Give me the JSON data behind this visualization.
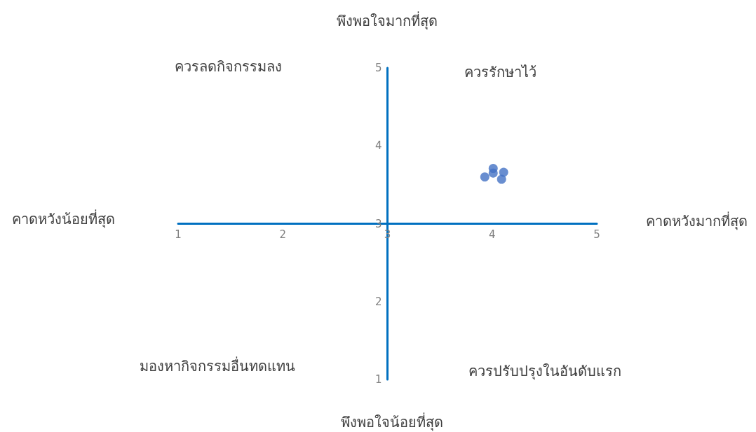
{
  "chart_data": {
    "type": "scatter",
    "x": [
      3.93,
      4.01,
      4.01,
      4.11,
      4.09
    ],
    "values": [
      3.6,
      3.71,
      3.65,
      3.66,
      3.57
    ],
    "color": "#4472c4",
    "xlim": [
      1,
      5
    ],
    "ylim": [
      1,
      5
    ],
    "xticks": [
      1,
      2,
      3,
      4,
      5
    ],
    "yticks": [
      1,
      2,
      3,
      4,
      5
    ],
    "grid": false,
    "marker": "circle",
    "annotations": [
      "พึงพอใจมากที่สุด",
      "คาดหวังน้อยที่สุด",
      "คาดหวังมากที่สุด",
      "พึงพอใจน้อยที่สุด",
      "ควรลดกิจกรรมลง",
      "ควรรักษาไว้",
      "มองหากิจกรรมอื่นทดแทน",
      "ควรปรับปรุงในอันดับแรก"
    ]
  }
}
